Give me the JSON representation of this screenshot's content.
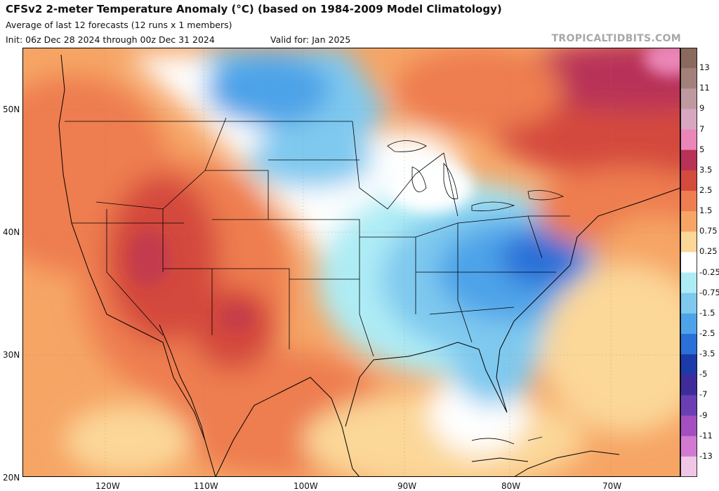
{
  "header": {
    "title": "CFSv2 2-meter Temperature Anomaly (°C) (based on 1984-2009 Model Climatology)",
    "subtitle": "Average of last 12 forecasts (12 runs x 1 members)",
    "init": "Init: 06z Dec 28 2024 through 00z Dec 31 2024",
    "valid": "Valid for: Jan 2025",
    "source": "TROPICALTIDBITS.COM"
  },
  "axes": {
    "lat_labels": [
      "50N",
      "40N",
      "30N",
      "20N"
    ],
    "lon_labels": [
      "120W",
      "110W",
      "100W",
      "90W",
      "80W",
      "70W"
    ]
  },
  "colorbar": {
    "labels": [
      "13",
      "11",
      "9",
      "7",
      "5",
      "3.5",
      "2.5",
      "1.5",
      "0.75",
      "0.25",
      "-0.25",
      "-0.75",
      "-1.5",
      "-2.5",
      "-3.5",
      "-5",
      "-7",
      "-9",
      "-11",
      "-13"
    ],
    "colors": [
      "#8a6a5e",
      "#a3807b",
      "#be9aa0",
      "#d8a6c0",
      "#ea86b8",
      "#b83258",
      "#d44a3c",
      "#ee7d4f",
      "#f6a565",
      "#fbd798",
      "#ffffff",
      "#aeecf5",
      "#7fc9ef",
      "#4da3e8",
      "#2a70d8",
      "#1c3aa8",
      "#3e2c9a",
      "#6a3fb4",
      "#a34fc0",
      "#d27ad2",
      "#f0c6e6"
    ]
  }
}
